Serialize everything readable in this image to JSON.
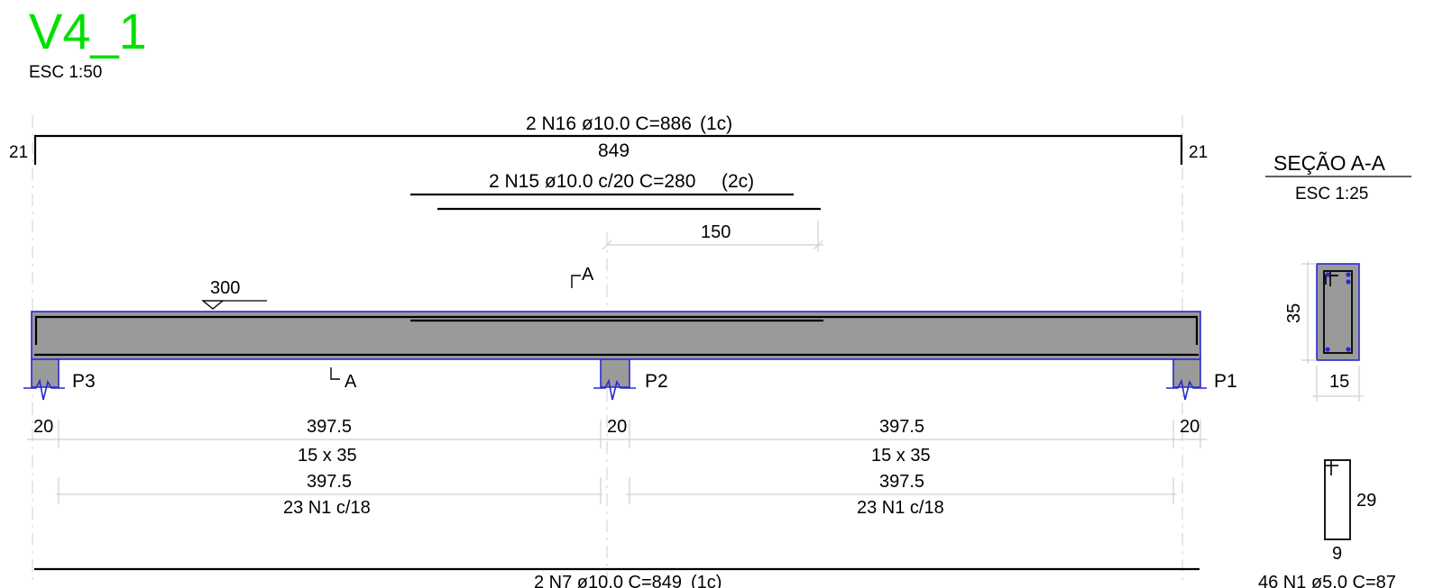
{
  "drawing": {
    "title": "V4_1",
    "scale": "ESC 1:50"
  },
  "top_bars": {
    "n16_label": "2 N16 ø10.0  C=886",
    "n16_layer": "(1c)",
    "n16_hook_left": "21",
    "n16_hook_right": "21",
    "n16_length": "849",
    "n15_label": "2 N15 ø10.0 c/20  C=280",
    "n15_layer": "(2c)",
    "n15_anchor": "150"
  },
  "section_marks": {
    "upper": "A",
    "lower": "A"
  },
  "level_mark": "300",
  "supports": [
    {
      "label": "P3",
      "width": "20"
    },
    {
      "label": "P2",
      "width": "20"
    },
    {
      "label": "P1",
      "width": "20"
    }
  ],
  "spans": [
    {
      "length": "397.5",
      "section": "15 x 35",
      "stirrup_length": "397.5",
      "stirrups": "23 N1 c/18"
    },
    {
      "length": "397.5",
      "section": "15 x 35",
      "stirrup_length": "397.5",
      "stirrups": "23 N1 c/18"
    }
  ],
  "bottom_bar": {
    "label": "2 N7 ø10.0  C=849",
    "layer": "(1c)"
  },
  "section_view": {
    "title": "SEÇÃO A-A",
    "scale": "ESC 1:25",
    "height": "35",
    "width": "15"
  },
  "stirrup_detail": {
    "height": "29",
    "width": "9",
    "label": "46 N1 ø5.0  C=87"
  },
  "colors": {
    "title": "#00e000",
    "concrete": "#9a9a9a",
    "outline": "#2a2ad0",
    "dimension": "#cfcfcf"
  }
}
